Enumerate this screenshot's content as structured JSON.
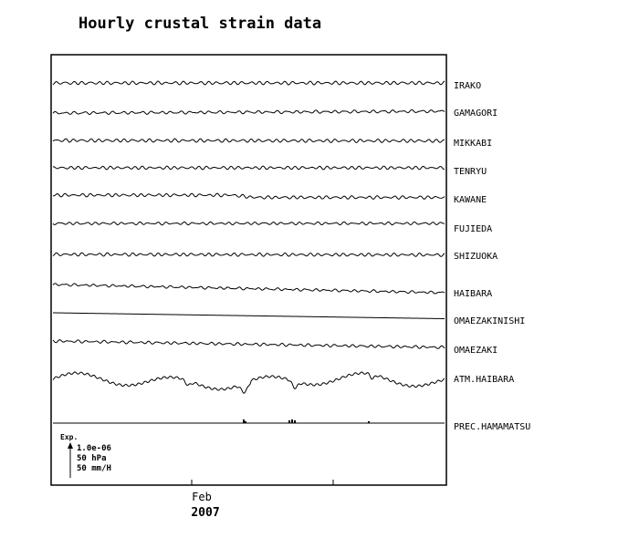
{
  "chart_data": {
    "type": "line",
    "title": "Hourly crustal strain data",
    "xaxis": {
      "tick_label": "Feb",
      "year_label": "2007"
    },
    "series": [
      {
        "name": "IRAKO",
        "style": "wavy",
        "trend": 0.0,
        "amp": 1.3,
        "freq": 0.4
      },
      {
        "name": "GAMAGORI",
        "style": "wavy",
        "trend": -2.0,
        "amp": 1.1,
        "freq": 0.35
      },
      {
        "name": "MIKKABI",
        "style": "wavy",
        "trend": 0.5,
        "amp": 1.3,
        "freq": 0.4
      },
      {
        "name": "TENRYU",
        "style": "wavy",
        "trend": 0.0,
        "amp": 1.2,
        "freq": 0.42
      },
      {
        "name": "KAWANE",
        "style": "step",
        "trend": 0.0,
        "amp": 1.2,
        "freq": 0.4
      },
      {
        "name": "FUJIEDA",
        "style": "wavy",
        "trend": 0.0,
        "amp": 1.0,
        "freq": 0.38
      },
      {
        "name": "SHIZUOKA",
        "style": "wavy",
        "trend": 0.5,
        "amp": 1.2,
        "freq": 0.4
      },
      {
        "name": "HAIBARA",
        "style": "wavy",
        "trend": 9.0,
        "amp": 0.9,
        "freq": 0.35
      },
      {
        "name": "OMAEZAKINISHI",
        "style": "smooth",
        "trend": 6.5,
        "amp": 0.0,
        "freq": 0.0
      },
      {
        "name": "OMAEZAKI",
        "style": "wavy",
        "trend": 7.0,
        "amp": 1.0,
        "freq": 0.38
      },
      {
        "name": "ATM.HAIBARA",
        "style": "pressure",
        "trend": 0.0,
        "amp": 0.0,
        "freq": 0.0
      },
      {
        "name": "PREC.HAMAMATSU",
        "style": "precip",
        "trend": 0.0,
        "amp": 0.0,
        "freq": 0.0
      }
    ],
    "scale_legend": {
      "title": "Exp.",
      "lines": [
        "1.0e-06",
        "50 hPa",
        "50 mm/H"
      ]
    }
  }
}
